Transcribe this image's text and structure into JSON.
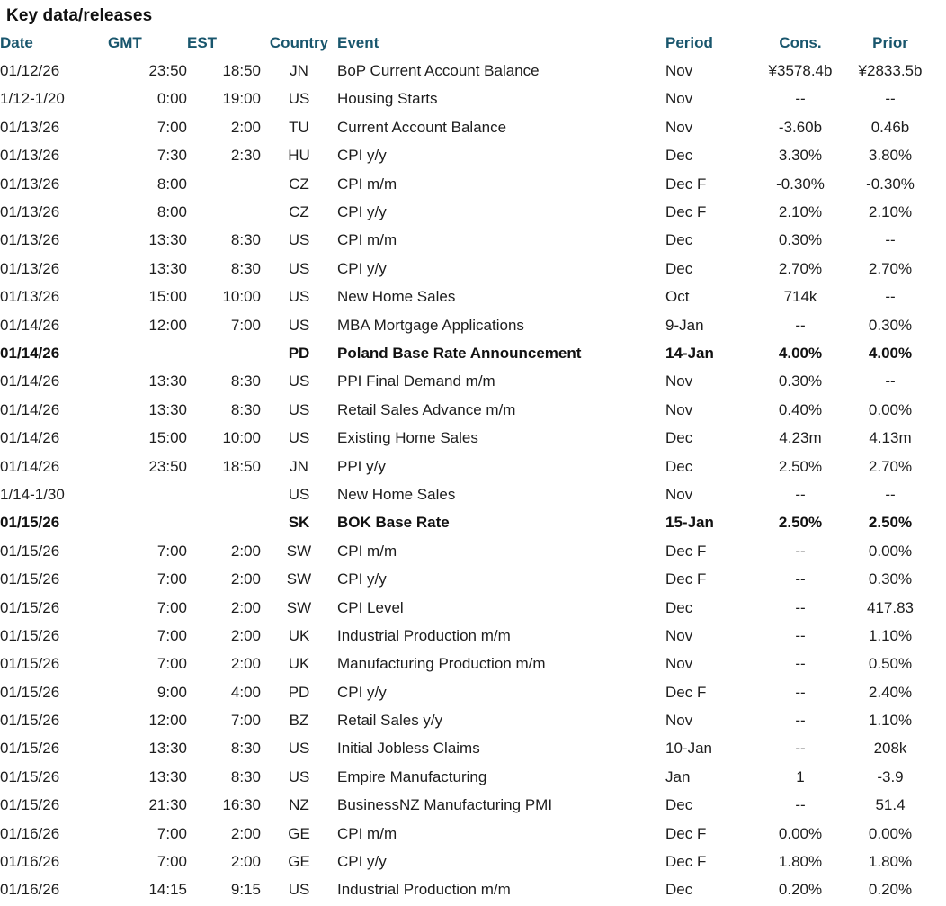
{
  "title": "Key data/releases",
  "colors": {
    "header_text": "#19566d",
    "body_text": "#1d1d1d",
    "title_text": "#111111",
    "background": "#ffffff"
  },
  "table": {
    "columns": [
      {
        "key": "date",
        "label": "Date"
      },
      {
        "key": "gmt",
        "label": "GMT"
      },
      {
        "key": "est",
        "label": "EST"
      },
      {
        "key": "country",
        "label": "Country"
      },
      {
        "key": "event",
        "label": "Event"
      },
      {
        "key": "period",
        "label": "Period"
      },
      {
        "key": "cons",
        "label": "Cons."
      },
      {
        "key": "prior",
        "label": "Prior"
      }
    ],
    "rows": [
      {
        "date": "01/12/26",
        "gmt": "23:50",
        "est": "18:50",
        "country": "JN",
        "event": "BoP Current Account Balance",
        "period": "Nov",
        "cons": "¥3578.4b",
        "prior": "¥2833.5b",
        "bold": false
      },
      {
        "date": "1/12-1/20",
        "gmt": "0:00",
        "est": "19:00",
        "country": "US",
        "event": "Housing Starts",
        "period": "Nov",
        "cons": "--",
        "prior": "--",
        "bold": false
      },
      {
        "date": "01/13/26",
        "gmt": "7:00",
        "est": "2:00",
        "country": "TU",
        "event": "Current Account Balance",
        "period": "Nov",
        "cons": "-3.60b",
        "prior": "0.46b",
        "bold": false
      },
      {
        "date": "01/13/26",
        "gmt": "7:30",
        "est": "2:30",
        "country": "HU",
        "event": "CPI y/y",
        "period": "Dec",
        "cons": "3.30%",
        "prior": "3.80%",
        "bold": false
      },
      {
        "date": "01/13/26",
        "gmt": "8:00",
        "est": "",
        "country": "CZ",
        "event": "CPI m/m",
        "period": "Dec F",
        "cons": "-0.30%",
        "prior": "-0.30%",
        "bold": false
      },
      {
        "date": "01/13/26",
        "gmt": "8:00",
        "est": "",
        "country": "CZ",
        "event": "CPI y/y",
        "period": "Dec F",
        "cons": "2.10%",
        "prior": "2.10%",
        "bold": false
      },
      {
        "date": "01/13/26",
        "gmt": "13:30",
        "est": "8:30",
        "country": "US",
        "event": "CPI m/m",
        "period": "Dec",
        "cons": "0.30%",
        "prior": "--",
        "bold": false
      },
      {
        "date": "01/13/26",
        "gmt": "13:30",
        "est": "8:30",
        "country": "US",
        "event": "CPI y/y",
        "period": "Dec",
        "cons": "2.70%",
        "prior": "2.70%",
        "bold": false
      },
      {
        "date": "01/13/26",
        "gmt": "15:00",
        "est": "10:00",
        "country": "US",
        "event": "New Home Sales",
        "period": "Oct",
        "cons": "714k",
        "prior": "--",
        "bold": false
      },
      {
        "date": "01/14/26",
        "gmt": "12:00",
        "est": "7:00",
        "country": "US",
        "event": "MBA Mortgage Applications",
        "period": "9-Jan",
        "cons": "--",
        "prior": "0.30%",
        "bold": false
      },
      {
        "date": "01/14/26",
        "gmt": "",
        "est": "",
        "country": "PD",
        "event": "Poland Base Rate Announcement",
        "period": "14-Jan",
        "cons": "4.00%",
        "prior": "4.00%",
        "bold": true
      },
      {
        "date": "01/14/26",
        "gmt": "13:30",
        "est": "8:30",
        "country": "US",
        "event": "PPI Final Demand m/m",
        "period": "Nov",
        "cons": "0.30%",
        "prior": "--",
        "bold": false
      },
      {
        "date": "01/14/26",
        "gmt": "13:30",
        "est": "8:30",
        "country": "US",
        "event": "Retail Sales Advance m/m",
        "period": "Nov",
        "cons": "0.40%",
        "prior": "0.00%",
        "bold": false
      },
      {
        "date": "01/14/26",
        "gmt": "15:00",
        "est": "10:00",
        "country": "US",
        "event": "Existing Home Sales",
        "period": "Dec",
        "cons": "4.23m",
        "prior": "4.13m",
        "bold": false
      },
      {
        "date": "01/14/26",
        "gmt": "23:50",
        "est": "18:50",
        "country": "JN",
        "event": "PPI y/y",
        "period": "Dec",
        "cons": "2.50%",
        "prior": "2.70%",
        "bold": false
      },
      {
        "date": "1/14-1/30",
        "gmt": "",
        "est": "",
        "country": "US",
        "event": "New Home Sales",
        "period": "Nov",
        "cons": "--",
        "prior": "--",
        "bold": false
      },
      {
        "date": "01/15/26",
        "gmt": "",
        "est": "",
        "country": "SK",
        "event": "BOK Base Rate",
        "period": "15-Jan",
        "cons": "2.50%",
        "prior": "2.50%",
        "bold": true
      },
      {
        "date": "01/15/26",
        "gmt": "7:00",
        "est": "2:00",
        "country": "SW",
        "event": "CPI m/m",
        "period": "Dec F",
        "cons": "--",
        "prior": "0.00%",
        "bold": false
      },
      {
        "date": "01/15/26",
        "gmt": "7:00",
        "est": "2:00",
        "country": "SW",
        "event": "CPI y/y",
        "period": "Dec F",
        "cons": "--",
        "prior": "0.30%",
        "bold": false
      },
      {
        "date": "01/15/26",
        "gmt": "7:00",
        "est": "2:00",
        "country": "SW",
        "event": "CPI Level",
        "period": "Dec",
        "cons": "--",
        "prior": "417.83",
        "bold": false
      },
      {
        "date": "01/15/26",
        "gmt": "7:00",
        "est": "2:00",
        "country": "UK",
        "event": "Industrial Production m/m",
        "period": "Nov",
        "cons": "--",
        "prior": "1.10%",
        "bold": false
      },
      {
        "date": "01/15/26",
        "gmt": "7:00",
        "est": "2:00",
        "country": "UK",
        "event": "Manufacturing Production m/m",
        "period": "Nov",
        "cons": "--",
        "prior": "0.50%",
        "bold": false
      },
      {
        "date": "01/15/26",
        "gmt": "9:00",
        "est": "4:00",
        "country": "PD",
        "event": "CPI y/y",
        "period": "Dec F",
        "cons": "--",
        "prior": "2.40%",
        "bold": false
      },
      {
        "date": "01/15/26",
        "gmt": "12:00",
        "est": "7:00",
        "country": "BZ",
        "event": "Retail Sales y/y",
        "period": "Nov",
        "cons": "--",
        "prior": "1.10%",
        "bold": false
      },
      {
        "date": "01/15/26",
        "gmt": "13:30",
        "est": "8:30",
        "country": "US",
        "event": "Initial Jobless Claims",
        "period": "10-Jan",
        "cons": "--",
        "prior": "208k",
        "bold": false
      },
      {
        "date": "01/15/26",
        "gmt": "13:30",
        "est": "8:30",
        "country": "US",
        "event": "Empire Manufacturing",
        "period": "Jan",
        "cons": "1",
        "prior": "-3.9",
        "bold": false
      },
      {
        "date": "01/15/26",
        "gmt": "21:30",
        "est": "16:30",
        "country": "NZ",
        "event": "BusinessNZ Manufacturing PMI",
        "period": "Dec",
        "cons": "--",
        "prior": "51.4",
        "bold": false
      },
      {
        "date": "01/16/26",
        "gmt": "7:00",
        "est": "2:00",
        "country": "GE",
        "event": "CPI m/m",
        "period": "Dec F",
        "cons": "0.00%",
        "prior": "0.00%",
        "bold": false
      },
      {
        "date": "01/16/26",
        "gmt": "7:00",
        "est": "2:00",
        "country": "GE",
        "event": "CPI y/y",
        "period": "Dec F",
        "cons": "1.80%",
        "prior": "1.80%",
        "bold": false
      },
      {
        "date": "01/16/26",
        "gmt": "14:15",
        "est": "9:15",
        "country": "US",
        "event": "Industrial Production m/m",
        "period": "Dec",
        "cons": "0.20%",
        "prior": "0.20%",
        "bold": false
      }
    ]
  }
}
